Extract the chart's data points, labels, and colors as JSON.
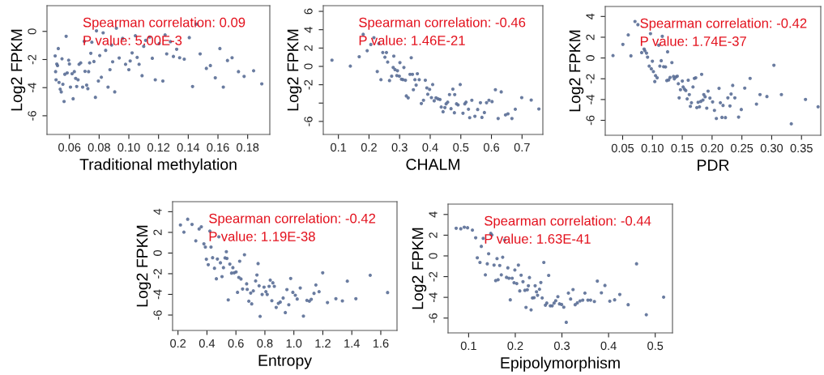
{
  "chart_data": [
    {
      "type": "scatter",
      "xlabel": "Traditional methylation",
      "ylabel": "Log2 FPKM",
      "annotations": [
        "Spearman correlation: 0.09",
        "P value: 5.00E-3"
      ],
      "marker": "circle",
      "grid": false,
      "xlim": [
        0.0449,
        0.1949
      ],
      "ylim": [
        -7.33,
        1.83
      ],
      "xticks": [
        0.06,
        0.08,
        {
          "value": 0.1,
          "label": "0.10"
        },
        0.12,
        0.14,
        0.16,
        0.18
      ],
      "yticks": [
        -6,
        -4,
        -2,
        0
      ],
      "series": [
        {
          "color": "#5a6e96",
          "x": [
            0.0504,
            0.0507,
            0.051,
            0.0515,
            0.052,
            0.0525,
            0.053,
            0.0538,
            0.0545,
            0.055,
            0.0556,
            0.0564,
            0.0569,
            0.0578,
            0.0585,
            0.0595,
            0.06,
            0.0607,
            0.0618,
            0.0625,
            0.0633,
            0.0642,
            0.0649,
            0.0658,
            0.0665,
            0.0676,
            0.0689,
            0.07,
            0.0705,
            0.0716,
            0.0724,
            0.0729,
            0.0736,
            0.0744,
            0.0751,
            0.0765,
            0.0775,
            0.0782,
            0.0795,
            0.0804,
            0.0815,
            0.0827,
            0.0844,
            0.086,
            0.0873,
            0.0884,
            0.0891,
            0.0905,
            0.0916,
            0.0935,
            0.0958,
            0.0978,
            0.1,
            0.1009,
            0.1022,
            0.1044,
            0.1056,
            0.1069,
            0.1089,
            0.11,
            0.1113,
            0.114,
            0.1158,
            0.1178,
            0.1204,
            0.1229,
            0.1244,
            0.1255,
            0.128,
            0.13,
            0.1322,
            0.1342,
            0.1373,
            0.1407,
            0.1429,
            0.1455,
            0.148,
            0.1522,
            0.1549,
            0.1582,
            0.1613,
            0.1636,
            0.1664,
            0.1695,
            0.1738,
            0.1776,
            0.184,
            0.1895
          ],
          "values": [
            -1.74,
            -2.86,
            -3.44,
            -2.32,
            -2.43,
            -1.22,
            -3.63,
            -4.11,
            -4.3,
            -1.95,
            -3.76,
            -4.98,
            -3.05,
            -0.35,
            -2.95,
            -2.05,
            -2.32,
            -3.96,
            -3.01,
            -4.79,
            -2.86,
            -3.34,
            -3.92,
            -3.44,
            -2.34,
            -2.24,
            -3.96,
            -0.7,
            -2.84,
            -3.82,
            -4.07,
            -2.86,
            -2.24,
            -1.56,
            -0.77,
            -2.14,
            -4.69,
            0.04,
            -3.53,
            -1.72,
            -3.26,
            -0.1,
            -1.35,
            -3.96,
            -2.72,
            -0.97,
            -2.16,
            -4.3,
            0.23,
            -1.89,
            -0.5,
            -2.34,
            -2.72,
            -2.1,
            -1.53,
            -0.31,
            -1.85,
            -2.34,
            -3.15,
            -1.06,
            -0.64,
            -0.4,
            -1.91,
            -3.44,
            -0.87,
            -3.53,
            -0.25,
            -1.6,
            -0.73,
            -1.78,
            -1.27,
            -1.87,
            -1.97,
            -0.44,
            -3.92,
            0.52,
            -1.6,
            -2.63,
            -2.43,
            -3.3,
            -1.22,
            -3.96,
            -2.07,
            -1.87,
            -2.86,
            -3.2,
            -2.8,
            -3.73
          ]
        }
      ]
    },
    {
      "type": "scatter",
      "xlabel": "CHALM",
      "ylabel": "Log2 FPKM",
      "annotations": [
        "Spearman correlation: -0.46",
        "P value: 1.46E-21"
      ],
      "marker": "circle",
      "grid": false,
      "xlim": [
        0.0506,
        0.768
      ],
      "ylim": [
        -7.42,
        6.62
      ],
      "xticks": [
        0.1,
        0.2,
        0.3,
        0.4,
        0.5,
        0.6,
        0.7
      ],
      "yticks": [
        -6,
        {
          "value": -4,
          "label": null
        },
        -2,
        0,
        2,
        4,
        6
      ],
      "series": [
        {
          "color": "#5a6e96",
          "x": [
            0.079,
            0.139,
            0.168,
            0.181,
            0.194,
            0.206,
            0.216,
            0.227,
            0.232,
            0.239,
            0.245,
            0.252,
            0.257,
            0.261,
            0.267,
            0.274,
            0.281,
            0.279,
            0.285,
            0.291,
            0.293,
            0.299,
            0.301,
            0.306,
            0.311,
            0.314,
            0.319,
            0.322,
            0.328,
            0.334,
            0.338,
            0.342,
            0.345,
            0.35,
            0.354,
            0.358,
            0.364,
            0.371,
            0.378,
            0.384,
            0.389,
            0.392,
            0.398,
            0.404,
            0.408,
            0.413,
            0.419,
            0.426,
            0.432,
            0.436,
            0.442,
            0.448,
            0.452,
            0.457,
            0.463,
            0.468,
            0.474,
            0.479,
            0.48,
            0.486,
            0.491,
            0.498,
            0.507,
            0.513,
            0.517,
            0.525,
            0.529,
            0.536,
            0.546,
            0.555,
            0.564,
            0.569,
            0.577,
            0.584,
            0.592,
            0.602,
            0.613,
            0.622,
            0.632,
            0.646,
            0.654,
            0.667,
            0.678,
            0.699,
            0.73,
            0.755
          ],
          "values": [
            0.68,
            0.03,
            1.06,
            3.49,
            1.71,
            2.39,
            3.13,
            -0.56,
            2.48,
            -1.45,
            1.51,
            1.0,
            1.51,
            0.47,
            -1.54,
            -1.06,
            1.12,
            -0.12,
            -0.35,
            -1.0,
            -0.47,
            -1.06,
            0.41,
            -1.39,
            -1.45,
            -0.12,
            -1.51,
            -3.22,
            -3.43,
            -0.86,
            0.95,
            -0.86,
            -2.54,
            -1.45,
            -2.04,
            -0.8,
            -1.45,
            -4.05,
            -3.69,
            -1.51,
            -2.34,
            -3.04,
            -2.51,
            -3.4,
            -1.98,
            -3.75,
            -3.43,
            -3.55,
            -3.61,
            -4.43,
            -4.94,
            -4.49,
            -4.08,
            -3.9,
            -3.07,
            -4.61,
            -2.48,
            -5.05,
            -3.07,
            -4.08,
            -4.2,
            -1.98,
            -5.11,
            -4.08,
            -3.9,
            -4.67,
            -5.59,
            -3.69,
            -5.44,
            -4.7,
            -3.96,
            -5.56,
            -5.03,
            -3.96,
            -3.69,
            -3.84,
            -2.54,
            -5.68,
            -2.78,
            -5.29,
            -5.17,
            -5.68,
            -4.67,
            -3.4,
            -3.67,
            -4.64
          ]
        }
      ]
    },
    {
      "type": "scatter",
      "xlabel": "PDR",
      "ylabel": "Log2 FPKM",
      "annotations": [
        "Spearman correlation: -0.42",
        "P value: 1.74E-37"
      ],
      "marker": "circle",
      "grid": false,
      "xlim": [
        0.0208,
        0.3823
      ],
      "ylim": [
        -7.44,
        4.96
      ],
      "xticks": [
        0.05,
        {
          "value": 0.1,
          "label": "0.10"
        },
        0.15,
        {
          "value": 0.2,
          "label": "0.20"
        },
        0.25,
        {
          "value": 0.3,
          "label": "0.30"
        },
        0.35
      ],
      "yticks": [
        -6,
        -4,
        -2,
        0,
        2,
        4
      ],
      "series": [
        {
          "color": "#5a6e96",
          "x": [
            0.0338,
            0.0504,
            0.0594,
            0.0639,
            0.0707,
            0.0756,
            0.0819,
            0.086,
            0.0873,
            0.09,
            0.0918,
            0.0945,
            0.0967,
            0.0981,
            0.0999,
            0.1016,
            0.1039,
            0.1052,
            0.1079,
            0.1106,
            0.1124,
            0.1147,
            0.1165,
            0.1187,
            0.1219,
            0.1241,
            0.1254,
            0.1272,
            0.1295,
            0.1326,
            0.1353,
            0.1367,
            0.1394,
            0.1416,
            0.1434,
            0.1448,
            0.147,
            0.1501,
            0.1515,
            0.1537,
            0.1559,
            0.1582,
            0.16,
            0.1618,
            0.1636,
            0.1654,
            0.168,
            0.1703,
            0.1726,
            0.1744,
            0.1766,
            0.1789,
            0.1811,
            0.1825,
            0.1847,
            0.1861,
            0.1883,
            0.1911,
            0.1933,
            0.1964,
            0.2009,
            0.204,
            0.2072,
            0.2117,
            0.2139,
            0.2166,
            0.2184,
            0.2224,
            0.2265,
            0.23,
            0.2319,
            0.2346,
            0.2382,
            0.2445,
            0.249,
            0.2548,
            0.2638,
            0.2745,
            0.2804,
            0.292,
            0.3037,
            0.3163,
            0.3329,
            0.3567,
            0.3778
          ],
          "values": [
            0.23,
            1.31,
            2.22,
            0.21,
            3.52,
            3.21,
            0.52,
            0.86,
            0.7,
            0.47,
            0.08,
            -0.78,
            2.35,
            -1.04,
            -0.31,
            -1.31,
            -2.27,
            -1.7,
            -1.91,
            1.23,
            -0.78,
            -0.26,
            2.09,
            -0.84,
            -0.86,
            -2.17,
            0.6,
            -2.11,
            -1.88,
            -0.44,
            -1.78,
            -2.01,
            -1.83,
            -1.75,
            -2.48,
            -3.84,
            -3.05,
            -2.22,
            -2.79,
            -3.0,
            -3.13,
            -3.94,
            -2.14,
            -3.52,
            -4.65,
            -4.31,
            -2.79,
            -1.96,
            -1.91,
            -4.78,
            -4.26,
            -4.7,
            -4.18,
            -1.57,
            -4.05,
            -3.52,
            -3.73,
            -4.83,
            -3.19,
            -3.86,
            -4.23,
            -5.04,
            -5.82,
            -2.92,
            -4.31,
            -5.72,
            -4.57,
            -5.74,
            -3.84,
            -4.62,
            -3.47,
            -2.64,
            -3.84,
            -5.69,
            -4.96,
            -2.9,
            -1.96,
            -4.44,
            -3.52,
            -3.71,
            -0.7,
            -3.52,
            -6.34,
            -3.99,
            -4.7
          ]
        }
      ]
    },
    {
      "type": "scatter",
      "xlabel": "Entropy",
      "ylabel": "Log2 FPKM",
      "annotations": [
        "Spearman correlation: -0.42",
        "P value: 1.19E-38"
      ],
      "marker": "circle",
      "grid": false,
      "xlim": [
        0.1627,
        1.712
      ],
      "ylim": [
        -7.49,
        4.97
      ],
      "xticks": [
        0.2,
        0.4,
        0.6,
        0.8,
        {
          "value": 1.0,
          "label": "1.0"
        },
        1.2,
        1.4,
        1.6
      ],
      "yticks": [
        -6,
        -4,
        -2,
        0,
        2,
        4
      ],
      "series": [
        {
          "color": "#5a6e96",
          "x": [
            0.217,
            0.241,
            0.267,
            0.297,
            0.323,
            0.346,
            0.361,
            0.379,
            0.389,
            0.396,
            0.409,
            0.42,
            0.428,
            0.439,
            0.452,
            0.465,
            0.472,
            0.482,
            0.493,
            0.504,
            0.514,
            0.525,
            0.534,
            0.538,
            0.547,
            0.558,
            0.57,
            0.579,
            0.588,
            0.601,
            0.611,
            0.62,
            0.626,
            0.635,
            0.646,
            0.659,
            0.674,
            0.678,
            0.689,
            0.702,
            0.709,
            0.72,
            0.736,
            0.745,
            0.753,
            0.76,
            0.767,
            0.781,
            0.794,
            0.807,
            0.816,
            0.829,
            0.837,
            0.848,
            0.855,
            0.865,
            0.878,
            0.893,
            0.906,
            0.926,
            0.941,
            0.952,
            0.965,
            0.978,
            0.993,
            1.01,
            1.023,
            1.044,
            1.066,
            1.09,
            1.107,
            1.12,
            1.139,
            1.152,
            1.174,
            1.199,
            1.232,
            1.29,
            1.335,
            1.369,
            1.428,
            1.527,
            1.647
          ],
          "values": [
            2.72,
            2.02,
            3.27,
            2.77,
            1.18,
            2.33,
            2.54,
            0.89,
            0.58,
            -0.6,
            -1.13,
            2.12,
            0.58,
            -0.45,
            -1.47,
            -2.49,
            -0.58,
            1.57,
            -0.94,
            -2.28,
            -1.41,
            -0.47,
            0.13,
            -0.52,
            -4.53,
            -1.07,
            -1.94,
            -1.41,
            -1.91,
            -1.83,
            -3.8,
            -2.36,
            -0.79,
            -2.51,
            -3.48,
            -0.16,
            -2.98,
            -3.51,
            -4.66,
            -3.87,
            -4.92,
            -3.66,
            -2.7,
            -2.12,
            -1.02,
            -3.17,
            -6.13,
            -4.01,
            -3.3,
            -3.74,
            -4.01,
            -3.22,
            -2.62,
            -4.61,
            -2.88,
            -3.22,
            -5.26,
            -4.87,
            -4.74,
            -4.35,
            -5.76,
            -3.53,
            -5.0,
            -2.46,
            -3.8,
            -4.08,
            -4.45,
            -3.38,
            -6.1,
            -4.58,
            -4.66,
            -4.48,
            -3.9,
            -3.09,
            -3.74,
            -1.91,
            -4.79,
            -4.42,
            -4.63,
            -2.72,
            -4.42,
            -2.15,
            -3.82
          ]
        }
      ]
    },
    {
      "type": "scatter",
      "xlabel": "Epipolymorphism",
      "ylabel": "Log2 FPKM",
      "annotations": [
        "Spearman correlation: -0.44",
        "P value: 1.63E-41"
      ],
      "marker": "circle",
      "grid": false,
      "xlim": [
        0.0559,
        0.537
      ],
      "ylim": [
        -7.43,
        5.0
      ],
      "xticks": [
        0.1,
        0.2,
        0.3,
        0.4,
        0.5
      ],
      "yticks": [
        -6,
        -4,
        -2,
        0,
        2,
        4
      ],
      "series": [
        {
          "color": "#5a6e96",
          "x": [
            0.0733,
            0.0832,
            0.0907,
            0.0977,
            0.1081,
            0.1151,
            0.1186,
            0.1243,
            0.1272,
            0.1313,
            0.1359,
            0.14,
            0.1429,
            0.1475,
            0.1499,
            0.1545,
            0.158,
            0.1609,
            0.1632,
            0.1667,
            0.1701,
            0.173,
            0.1771,
            0.1812,
            0.1841,
            0.1864,
            0.1893,
            0.1933,
            0.1974,
            0.1991,
            0.2032,
            0.2067,
            0.2096,
            0.2125,
            0.2165,
            0.2206,
            0.223,
            0.2258,
            0.2281,
            0.2304,
            0.2339,
            0.2368,
            0.2403,
            0.2426,
            0.2455,
            0.2478,
            0.2519,
            0.2548,
            0.2577,
            0.2612,
            0.2646,
            0.2675,
            0.2716,
            0.2751,
            0.2791,
            0.2832,
            0.2867,
            0.2913,
            0.2948,
            0.2994,
            0.304,
            0.3093,
            0.3139,
            0.3186,
            0.3238,
            0.3284,
            0.333,
            0.3388,
            0.3446,
            0.3493,
            0.3557,
            0.3614,
            0.3696,
            0.3759,
            0.3846,
            0.3922,
            0.4026,
            0.413,
            0.424,
            0.442,
            0.46,
            0.4809,
            0.518
          ],
          "values": [
            2.67,
            2.62,
            2.77,
            2.72,
            2.49,
            1.75,
            -0.18,
            -0.63,
            0.92,
            1.7,
            -1.83,
            -0.76,
            0.21,
            2.17,
            2.02,
            -0.89,
            -2.38,
            -0.26,
            -2.3,
            -0.92,
            -1.83,
            -0.13,
            1.54,
            -2.07,
            -1.15,
            -2.15,
            -4.24,
            -2.15,
            -2.59,
            -1.36,
            -2.67,
            -0.89,
            -3.38,
            -1.86,
            -2.49,
            -3.32,
            -4.97,
            -3.27,
            -2.88,
            -2.09,
            -5.21,
            -4.06,
            -4.03,
            -2.88,
            -3.46,
            -3.8,
            -3.22,
            -2.57,
            -4.06,
            -0.63,
            -4.76,
            -4.55,
            -1.88,
            -4.82,
            -4.82,
            -4.55,
            -4.32,
            -3.93,
            -4.63,
            -4.69,
            -4.95,
            -6.41,
            -3.59,
            -4.16,
            -3.25,
            -4.71,
            -4.53,
            -4.35,
            -4.27,
            -3.59,
            -4.27,
            -4.27,
            -4.4,
            -2.43,
            -3.56,
            -2.85,
            -4.37,
            -4.24,
            -3.72,
            -4.71,
            -0.76,
            -5.68,
            -3.98
          ]
        }
      ]
    }
  ]
}
